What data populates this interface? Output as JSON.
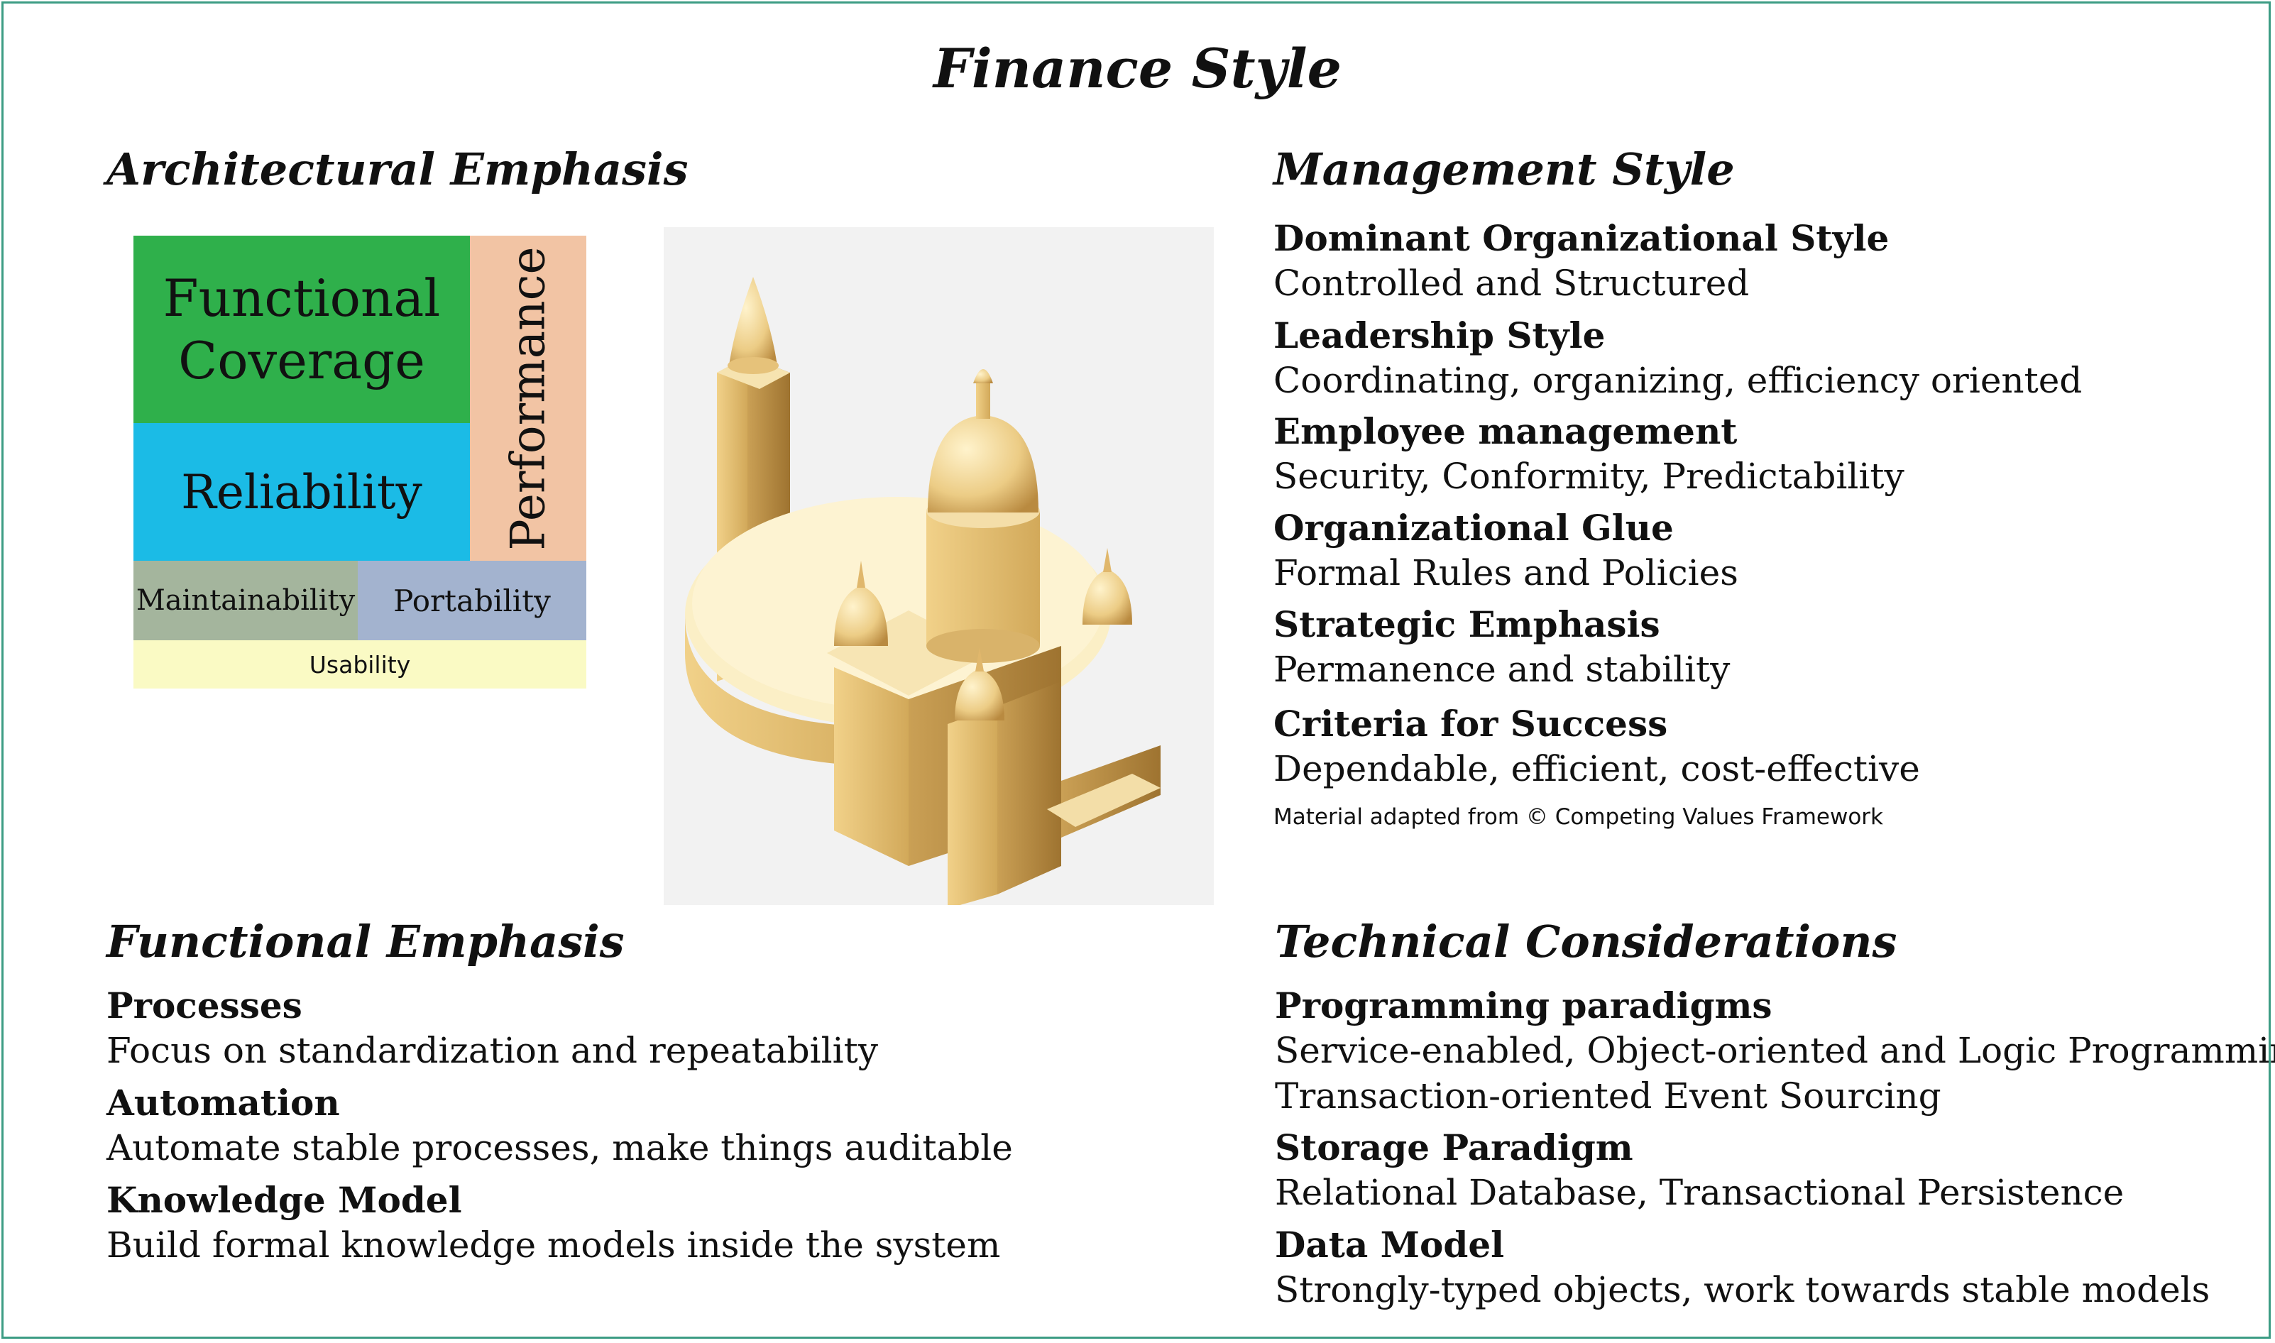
{
  "title": "Finance Style",
  "architectural": {
    "heading": "Architectural Emphasis",
    "blocks": {
      "functional_line1": "Functional",
      "functional_line2": "Coverage",
      "reliability": "Reliability",
      "performance": "Performance",
      "maintainability": "Maintainability",
      "portability": "Portability",
      "usability": "Usability"
    },
    "colors": {
      "functional": "#2fb04b",
      "reliability": "#1bbbe6",
      "performance": "#f2c4a4",
      "maintainability": "#a4b59d",
      "portability": "#a3b3cf",
      "usability": "#fafac4"
    }
  },
  "illustration": {
    "icon": "cathedral-icon"
  },
  "management": {
    "heading": "Management Style",
    "items": [
      {
        "label": "Dominant Organizational Style",
        "value": "Controlled and Structured"
      },
      {
        "label": "Leadership Style",
        "value": "Coordinating, organizing, efficiency oriented"
      },
      {
        "label": "Employee management",
        "value": "Security, Conformity, Predictability"
      },
      {
        "label": "Organizational Glue",
        "value": "Formal Rules and Policies"
      },
      {
        "label": "Strategic Emphasis",
        "value": "Permanence and stability"
      },
      {
        "label": "Criteria for Success",
        "value": "Dependable, efficient, cost-effective"
      }
    ],
    "note": "Material adapted from © Competing Values Framework"
  },
  "functional": {
    "heading": "Functional Emphasis",
    "items": [
      {
        "label": "Processes",
        "value": "Focus on standardization and repeatability"
      },
      {
        "label": "Automation",
        "value": "Automate stable processes, make things auditable"
      },
      {
        "label": "Knowledge Model",
        "value": "Build formal knowledge models inside the system"
      }
    ]
  },
  "technical": {
    "heading": "Technical Considerations",
    "items": [
      {
        "label": "Programming paradigms",
        "value": "Service-enabled, Object-oriented and Logic Programming",
        "value2": "Transaction-oriented Event Sourcing"
      },
      {
        "label": "Storage Paradigm",
        "value": "Relational Database, Transactional Persistence"
      },
      {
        "label": "Data Model",
        "value": "Strongly-typed objects, work towards stable models"
      }
    ]
  },
  "frame_color": "#3c9c84"
}
